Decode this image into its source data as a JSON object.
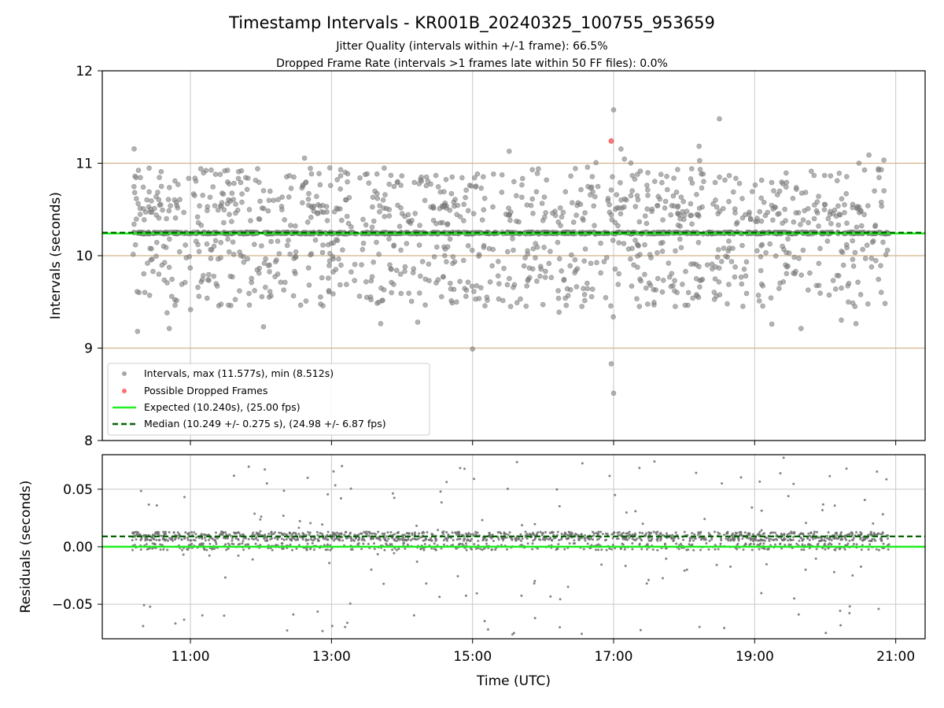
{
  "colors": {
    "intervals": "#808080",
    "dropped": "#ff4d4d",
    "expected": "#22ee22",
    "median": "#006400",
    "threshold": "#d2b48c",
    "grid": "#c8c8c8"
  },
  "chart_data": [
    {
      "type": "scatter",
      "title": "Timestamp Intervals - KR001B_20240325_100755_953659",
      "subtitles": [
        "Jitter Quality (intervals within +/-1 frame): 66.5%",
        "Dropped Frame Rate (intervals >1 frames late within 50 FF files): 0.0%"
      ],
      "xlabel": "",
      "ylabel": "Intervals (seconds)",
      "xlim": [
        "09:45",
        "21:25"
      ],
      "ylim": [
        8,
        12
      ],
      "yticks": [
        8,
        9,
        10,
        11,
        12
      ],
      "grid": "x",
      "legend_position": "lower-left",
      "threshold_lines": [
        9,
        10,
        11
      ],
      "expected": 10.24,
      "median": 10.249,
      "series": [
        {
          "name": "Intervals, max (11.577s), min (8.512s)",
          "x_range": [
            "10:10",
            "20:55"
          ],
          "baseline": 10.245,
          "scatter_range": [
            9.2,
            11.2
          ],
          "notable_points": [
            {
              "x": "17:00",
              "y": 11.577
            },
            {
              "x": "17:00",
              "y": 8.512
            },
            {
              "x": "16:58",
              "y": 8.83
            },
            {
              "x": "15:00",
              "y": 8.99
            },
            {
              "x": "18:30",
              "y": 11.48
            },
            {
              "x": "10:15",
              "y": 9.18
            }
          ]
        },
        {
          "name": "Possible Dropped Frames",
          "points": [
            {
              "x": "16:58",
              "y": 11.24
            }
          ]
        },
        {
          "name": "Expected (10.240s), (25.00 fps)",
          "value": 10.24
        },
        {
          "name": "Median (10.249 +/- 0.275 s), (24.98 +/- 6.87 fps)",
          "value": 10.249
        }
      ]
    },
    {
      "type": "scatter",
      "xlabel": "Time (UTC)",
      "ylabel": "Residuals (seconds)",
      "xlim": [
        "09:45",
        "21:25"
      ],
      "xticks": [
        "11:00",
        "13:00",
        "15:00",
        "17:00",
        "19:00",
        "21:00"
      ],
      "ylim": [
        -0.08,
        0.08
      ],
      "yticks": [
        -0.05,
        0.0,
        0.05
      ],
      "ytick_labels": [
        "−0.05",
        "0.00",
        "0.05"
      ],
      "grid": "both",
      "expected": 0.0,
      "median": 0.009
    }
  ]
}
